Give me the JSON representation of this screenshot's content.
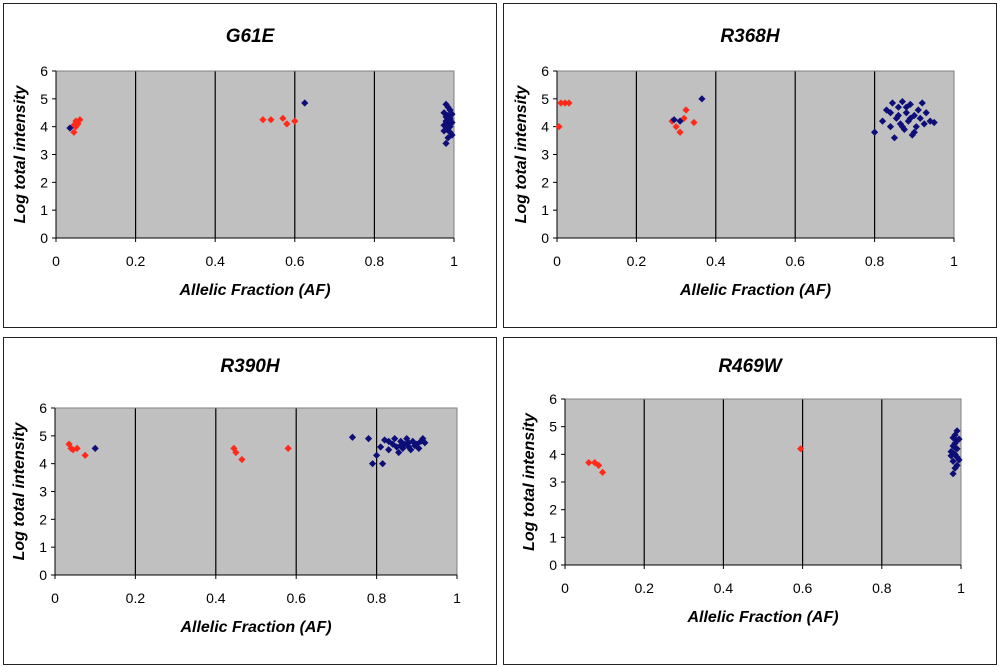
{
  "colors": {
    "plot_background": "#c0c0c0",
    "red_series": "#ff2a1a",
    "blue_series": "#0e0e78",
    "gridline": "#000000"
  },
  "chart_data": [
    {
      "type": "scatter",
      "title": "G61E",
      "xlabel": "Allelic Fraction (AF)",
      "ylabel": "Log total intensity",
      "xlim": [
        0,
        1
      ],
      "ylim": [
        0,
        6
      ],
      "x_ticks": [
        "0",
        "0.2",
        "0.4",
        "0.6",
        "0.8",
        "1"
      ],
      "y_ticks": [
        "0",
        "1",
        "2",
        "3",
        "4",
        "5",
        "6"
      ],
      "grid": "vertical",
      "legend": "none",
      "series": [
        {
          "color": "red",
          "points": [
            [
              0.045,
              3.8
            ],
            [
              0.05,
              4.0
            ],
            [
              0.055,
              4.1
            ],
            [
              0.05,
              4.2
            ],
            [
              0.06,
              4.25
            ],
            [
              0.045,
              4.05
            ],
            [
              0.52,
              4.25
            ],
            [
              0.54,
              4.25
            ],
            [
              0.57,
              4.3
            ],
            [
              0.58,
              4.1
            ],
            [
              0.6,
              4.2
            ]
          ]
        },
        {
          "color": "blue",
          "points": [
            [
              0.035,
              3.95
            ],
            [
              0.625,
              4.85
            ],
            [
              0.98,
              3.4
            ],
            [
              0.985,
              3.6
            ],
            [
              0.99,
              3.8
            ],
            [
              0.98,
              3.9
            ],
            [
              0.99,
              4.0
            ],
            [
              0.975,
              4.05
            ],
            [
              0.985,
              4.1
            ],
            [
              0.995,
              4.15
            ],
            [
              0.98,
              4.2
            ],
            [
              0.99,
              4.3
            ],
            [
              0.985,
              4.4
            ],
            [
              0.975,
              4.5
            ],
            [
              0.99,
              4.6
            ],
            [
              0.985,
              4.7
            ],
            [
              0.98,
              4.8
            ],
            [
              0.995,
              3.7
            ],
            [
              0.975,
              3.85
            ],
            [
              0.99,
              4.25
            ],
            [
              0.98,
              4.35
            ],
            [
              0.985,
              3.95
            ],
            [
              0.995,
              4.45
            ]
          ]
        }
      ]
    },
    {
      "type": "scatter",
      "title": "R368H",
      "xlabel": "Allelic Fraction (AF)",
      "ylabel": "Log total intensity",
      "xlim": [
        0,
        1
      ],
      "ylim": [
        0,
        6
      ],
      "x_ticks": [
        "0",
        "0.2",
        "0.4",
        "0.6",
        "0.8",
        "1"
      ],
      "y_ticks": [
        "0",
        "1",
        "2",
        "3",
        "4",
        "5",
        "6"
      ],
      "grid": "vertical",
      "legend": "none",
      "series": [
        {
          "color": "red",
          "points": [
            [
              0.005,
              4.0
            ],
            [
              0.01,
              4.85
            ],
            [
              0.02,
              4.85
            ],
            [
              0.03,
              4.85
            ],
            [
              0.29,
              4.2
            ],
            [
              0.3,
              4.0
            ],
            [
              0.31,
              3.8
            ],
            [
              0.32,
              4.3
            ],
            [
              0.325,
              4.6
            ],
            [
              0.345,
              4.15
            ]
          ]
        },
        {
          "color": "blue",
          "points": [
            [
              0.295,
              4.25
            ],
            [
              0.31,
              4.2
            ],
            [
              0.365,
              5.0
            ],
            [
              0.8,
              3.8
            ],
            [
              0.82,
              4.2
            ],
            [
              0.83,
              4.6
            ],
            [
              0.84,
              4.0
            ],
            [
              0.845,
              4.85
            ],
            [
              0.85,
              3.6
            ],
            [
              0.855,
              4.3
            ],
            [
              0.86,
              4.7
            ],
            [
              0.865,
              4.1
            ],
            [
              0.87,
              4.9
            ],
            [
              0.875,
              3.9
            ],
            [
              0.88,
              4.5
            ],
            [
              0.885,
              4.2
            ],
            [
              0.89,
              4.8
            ],
            [
              0.895,
              3.7
            ],
            [
              0.9,
              4.4
            ],
            [
              0.905,
              4.0
            ],
            [
              0.91,
              4.6
            ],
            [
              0.915,
              4.3
            ],
            [
              0.92,
              4.85
            ],
            [
              0.925,
              4.1
            ],
            [
              0.93,
              4.5
            ],
            [
              0.94,
              4.2
            ],
            [
              0.95,
              4.15
            ],
            [
              0.86,
              4.4
            ],
            [
              0.87,
              4.0
            ],
            [
              0.88,
              4.7
            ],
            [
              0.89,
              4.3
            ],
            [
              0.9,
              3.8
            ],
            [
              0.84,
              4.5
            ]
          ]
        }
      ]
    },
    {
      "type": "scatter",
      "title": "R390H",
      "xlabel": "Allelic Fraction (AF)",
      "ylabel": "Log total intensity",
      "xlim": [
        0,
        1
      ],
      "ylim": [
        0,
        6
      ],
      "x_ticks": [
        "0",
        "0.2",
        "0.4",
        "0.6",
        "0.8",
        "1"
      ],
      "y_ticks": [
        "0",
        "1",
        "2",
        "3",
        "4",
        "5",
        "6"
      ],
      "grid": "vertical",
      "legend": "none",
      "series": [
        {
          "color": "red",
          "points": [
            [
              0.035,
              4.7
            ],
            [
              0.04,
              4.55
            ],
            [
              0.045,
              4.5
            ],
            [
              0.055,
              4.55
            ],
            [
              0.075,
              4.3
            ],
            [
              0.445,
              4.55
            ],
            [
              0.45,
              4.4
            ],
            [
              0.465,
              4.15
            ],
            [
              0.58,
              4.55
            ]
          ]
        },
        {
          "color": "blue",
          "points": [
            [
              0.1,
              4.55
            ],
            [
              0.74,
              4.95
            ],
            [
              0.78,
              4.9
            ],
            [
              0.79,
              4.0
            ],
            [
              0.8,
              4.3
            ],
            [
              0.81,
              4.6
            ],
            [
              0.815,
              4.0
            ],
            [
              0.82,
              4.85
            ],
            [
              0.83,
              4.5
            ],
            [
              0.84,
              4.7
            ],
            [
              0.845,
              4.9
            ],
            [
              0.85,
              4.6
            ],
            [
              0.855,
              4.4
            ],
            [
              0.86,
              4.8
            ],
            [
              0.865,
              4.55
            ],
            [
              0.87,
              4.7
            ],
            [
              0.875,
              4.9
            ],
            [
              0.88,
              4.6
            ],
            [
              0.885,
              4.5
            ],
            [
              0.89,
              4.8
            ],
            [
              0.895,
              4.65
            ],
            [
              0.9,
              4.7
            ],
            [
              0.905,
              4.55
            ],
            [
              0.91,
              4.8
            ],
            [
              0.915,
              4.9
            ],
            [
              0.92,
              4.75
            ],
            [
              0.83,
              4.8
            ],
            [
              0.86,
              4.65
            ],
            [
              0.88,
              4.75
            ]
          ]
        }
      ]
    },
    {
      "type": "scatter",
      "title": "R469W",
      "xlabel": "Allelic Fraction (AF)",
      "ylabel": "Log total intensity",
      "xlim": [
        0,
        1
      ],
      "ylim": [
        0,
        6
      ],
      "x_ticks": [
        "0",
        "0.2",
        "0.4",
        "0.6",
        "0.8",
        "1"
      ],
      "y_ticks": [
        "0",
        "1",
        "2",
        "3",
        "4",
        "5",
        "6"
      ],
      "grid": "vertical",
      "legend": "none",
      "series": [
        {
          "color": "red",
          "points": [
            [
              0.06,
              3.7
            ],
            [
              0.075,
              3.7
            ],
            [
              0.085,
              3.6
            ],
            [
              0.095,
              3.35
            ],
            [
              0.595,
              4.2
            ]
          ]
        },
        {
          "color": "blue",
          "points": [
            [
              0.98,
              3.3
            ],
            [
              0.985,
              3.5
            ],
            [
              0.99,
              3.6
            ],
            [
              0.98,
              3.75
            ],
            [
              0.99,
              3.9
            ],
            [
              0.985,
              4.0
            ],
            [
              0.975,
              4.1
            ],
            [
              0.99,
              4.2
            ],
            [
              0.98,
              4.3
            ],
            [
              0.985,
              4.4
            ],
            [
              0.99,
              4.5
            ],
            [
              0.98,
              4.6
            ],
            [
              0.985,
              4.7
            ],
            [
              0.99,
              4.85
            ],
            [
              0.995,
              3.8
            ],
            [
              0.975,
              3.95
            ],
            [
              0.985,
              4.25
            ],
            [
              0.995,
              4.55
            ],
            [
              0.98,
              4.05
            ]
          ]
        }
      ]
    }
  ]
}
